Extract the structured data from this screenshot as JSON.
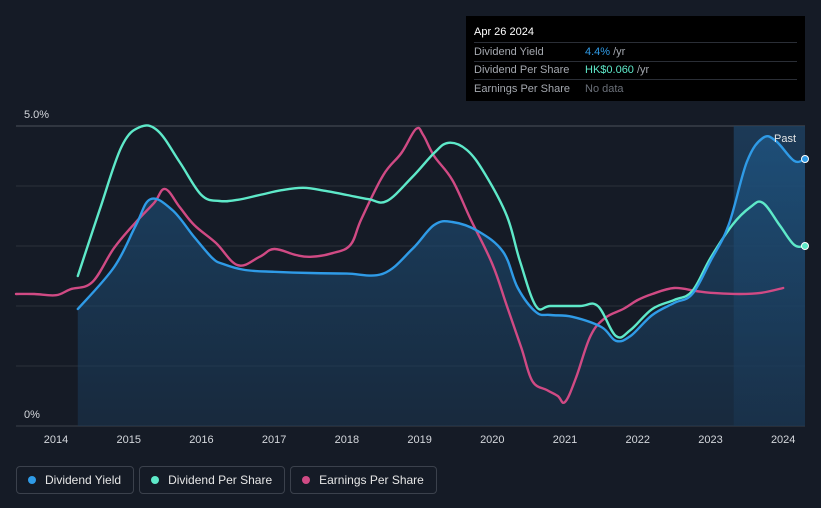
{
  "tooltip": {
    "date": "Apr 26 2024",
    "rows": [
      {
        "label": "Dividend Yield",
        "value": "4.4%",
        "unit": "/yr"
      },
      {
        "label": "Dividend Per Share",
        "value": "HK$0.060",
        "unit": "/yr"
      },
      {
        "label": "Earnings Per Share",
        "value": "No data",
        "unit": ""
      }
    ]
  },
  "legend": [
    {
      "label": "Dividend Yield",
      "color": "#2f9be7"
    },
    {
      "label": "Dividend Per Share",
      "color": "#5ee9c9"
    },
    {
      "label": "Earnings Per Share",
      "color": "#d04a84"
    }
  ],
  "chart_data": {
    "type": "line",
    "title": "",
    "xlabel": "",
    "ylabel": "",
    "y_tick_labels": [
      "5.0%",
      "0%"
    ],
    "past_label": "Past",
    "x_ticks": [
      2014,
      2015,
      2016,
      2017,
      2018,
      2019,
      2020,
      2021,
      2022,
      2023,
      2024
    ],
    "xlim": [
      2013.45,
      2024.3
    ],
    "ylim": [
      0,
      5.0
    ],
    "past_region_start": 2023.32,
    "series": [
      {
        "name": "Dividend Yield",
        "color": "#2f9be7",
        "filled": true,
        "points": [
          [
            2014.3,
            1.95
          ],
          [
            2014.8,
            2.65
          ],
          [
            2015.1,
            3.35
          ],
          [
            2015.3,
            3.78
          ],
          [
            2015.6,
            3.6
          ],
          [
            2015.9,
            3.15
          ],
          [
            2016.15,
            2.8
          ],
          [
            2016.3,
            2.7
          ],
          [
            2016.6,
            2.6
          ],
          [
            2017.0,
            2.57
          ],
          [
            2017.5,
            2.55
          ],
          [
            2018.0,
            2.54
          ],
          [
            2018.5,
            2.54
          ],
          [
            2018.9,
            2.95
          ],
          [
            2019.2,
            3.35
          ],
          [
            2019.45,
            3.4
          ],
          [
            2019.8,
            3.25
          ],
          [
            2020.15,
            2.9
          ],
          [
            2020.35,
            2.3
          ],
          [
            2020.6,
            1.9
          ],
          [
            2020.8,
            1.85
          ],
          [
            2021.1,
            1.82
          ],
          [
            2021.5,
            1.65
          ],
          [
            2021.7,
            1.42
          ],
          [
            2021.9,
            1.5
          ],
          [
            2022.2,
            1.85
          ],
          [
            2022.5,
            2.05
          ],
          [
            2022.75,
            2.2
          ],
          [
            2023.0,
            2.75
          ],
          [
            2023.25,
            3.35
          ],
          [
            2023.5,
            4.4
          ],
          [
            2023.72,
            4.8
          ],
          [
            2023.9,
            4.75
          ],
          [
            2024.15,
            4.42
          ],
          [
            2024.3,
            4.45
          ]
        ]
      },
      {
        "name": "Dividend Per Share",
        "color": "#5ee9c9",
        "filled": false,
        "points": [
          [
            2014.3,
            2.5
          ],
          [
            2014.6,
            3.6
          ],
          [
            2014.9,
            4.65
          ],
          [
            2015.15,
            4.98
          ],
          [
            2015.4,
            4.92
          ],
          [
            2015.7,
            4.4
          ],
          [
            2016.0,
            3.85
          ],
          [
            2016.25,
            3.75
          ],
          [
            2016.5,
            3.77
          ],
          [
            2016.8,
            3.85
          ],
          [
            2017.1,
            3.93
          ],
          [
            2017.4,
            3.97
          ],
          [
            2017.7,
            3.92
          ],
          [
            2018.0,
            3.85
          ],
          [
            2018.3,
            3.78
          ],
          [
            2018.55,
            3.75
          ],
          [
            2018.9,
            4.15
          ],
          [
            2019.2,
            4.55
          ],
          [
            2019.4,
            4.72
          ],
          [
            2019.65,
            4.6
          ],
          [
            2019.9,
            4.2
          ],
          [
            2020.2,
            3.5
          ],
          [
            2020.38,
            2.75
          ],
          [
            2020.6,
            2.0
          ],
          [
            2020.8,
            2.0
          ],
          [
            2021.2,
            2.0
          ],
          [
            2021.45,
            2.0
          ],
          [
            2021.7,
            1.5
          ],
          [
            2021.9,
            1.6
          ],
          [
            2022.2,
            1.95
          ],
          [
            2022.5,
            2.1
          ],
          [
            2022.75,
            2.25
          ],
          [
            2023.0,
            2.8
          ],
          [
            2023.3,
            3.35
          ],
          [
            2023.55,
            3.65
          ],
          [
            2023.72,
            3.72
          ],
          [
            2023.95,
            3.35
          ],
          [
            2024.15,
            3.02
          ],
          [
            2024.3,
            3.0
          ]
        ]
      },
      {
        "name": "Earnings Per Share",
        "color": "#d04a84",
        "filled": false,
        "points": [
          [
            2013.45,
            2.2
          ],
          [
            2013.7,
            2.2
          ],
          [
            2014.0,
            2.18
          ],
          [
            2014.2,
            2.28
          ],
          [
            2014.5,
            2.4
          ],
          [
            2014.8,
            2.97
          ],
          [
            2015.1,
            3.4
          ],
          [
            2015.35,
            3.72
          ],
          [
            2015.5,
            3.95
          ],
          [
            2015.7,
            3.65
          ],
          [
            2015.9,
            3.35
          ],
          [
            2016.2,
            3.05
          ],
          [
            2016.5,
            2.68
          ],
          [
            2016.8,
            2.82
          ],
          [
            2017.0,
            2.95
          ],
          [
            2017.3,
            2.85
          ],
          [
            2017.5,
            2.82
          ],
          [
            2017.8,
            2.88
          ],
          [
            2018.05,
            3.02
          ],
          [
            2018.2,
            3.45
          ],
          [
            2018.5,
            4.18
          ],
          [
            2018.75,
            4.55
          ],
          [
            2018.95,
            4.95
          ],
          [
            2019.05,
            4.85
          ],
          [
            2019.2,
            4.5
          ],
          [
            2019.45,
            4.1
          ],
          [
            2019.7,
            3.45
          ],
          [
            2020.0,
            2.7
          ],
          [
            2020.2,
            2.0
          ],
          [
            2020.4,
            1.3
          ],
          [
            2020.55,
            0.75
          ],
          [
            2020.75,
            0.6
          ],
          [
            2020.9,
            0.5
          ],
          [
            2021.0,
            0.4
          ],
          [
            2021.15,
            0.8
          ],
          [
            2021.35,
            1.5
          ],
          [
            2021.55,
            1.8
          ],
          [
            2021.8,
            1.95
          ],
          [
            2022.0,
            2.1
          ],
          [
            2022.2,
            2.2
          ],
          [
            2022.5,
            2.3
          ],
          [
            2022.8,
            2.25
          ],
          [
            2023.0,
            2.22
          ],
          [
            2023.4,
            2.2
          ],
          [
            2023.7,
            2.22
          ],
          [
            2024.0,
            2.3
          ]
        ]
      }
    ]
  }
}
